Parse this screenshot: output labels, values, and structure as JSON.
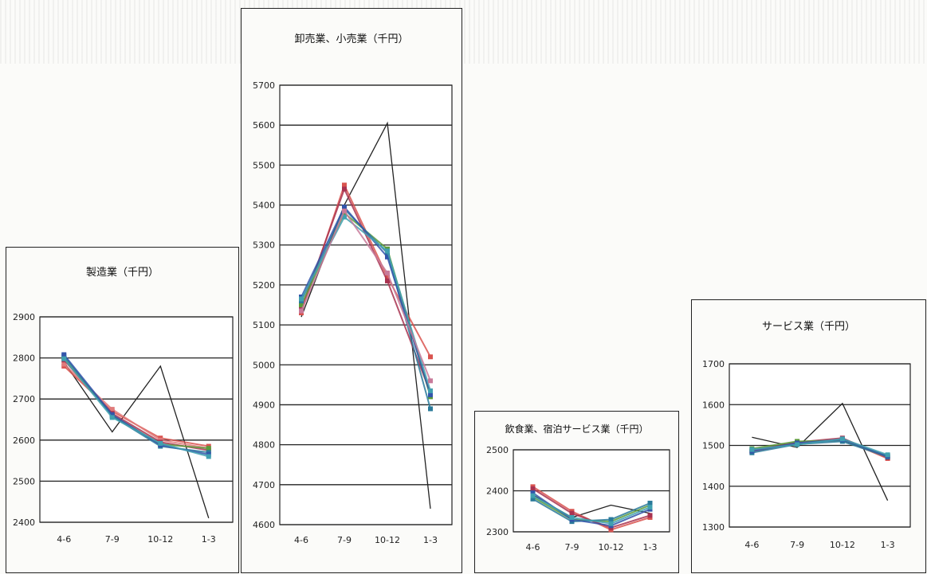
{
  "chart_data": [
    {
      "type": "line",
      "title": "製造業（千円）",
      "categories": [
        "4-6",
        "7-9",
        "10-12",
        "1-3"
      ],
      "ylim": [
        2400,
        2900
      ],
      "yticks": [
        2400,
        2500,
        2600,
        2700,
        2800,
        2900
      ],
      "series": [
        {
          "color": "#222222",
          "values": [
            2790,
            2620,
            2780,
            2410
          ]
        },
        {
          "color": "#d9534f",
          "values": [
            2780,
            2670,
            2605,
            2585
          ]
        },
        {
          "color": "#e07b7b",
          "values": [
            2785,
            2675,
            2600,
            2580
          ]
        },
        {
          "color": "#a83250",
          "values": [
            2795,
            2665,
            2595,
            2575
          ]
        },
        {
          "color": "#5b9b3a",
          "values": [
            2800,
            2660,
            2590,
            2580
          ]
        },
        {
          "color": "#2a7a9a",
          "values": [
            2805,
            2658,
            2585,
            2570
          ]
        },
        {
          "color": "#3355aa",
          "values": [
            2808,
            2662,
            2588,
            2565
          ]
        },
        {
          "color": "#40a0b0",
          "values": [
            2798,
            2655,
            2592,
            2560
          ]
        }
      ]
    },
    {
      "type": "line",
      "title": "卸売業、小売業（千円）",
      "categories": [
        "4-6",
        "7-9",
        "10-12",
        "1-3"
      ],
      "ylim": [
        4600,
        5700
      ],
      "yticks": [
        4600,
        4700,
        4800,
        4900,
        5000,
        5100,
        5200,
        5300,
        5400,
        5500,
        5600,
        5700
      ],
      "series": [
        {
          "color": "#222222",
          "values": [
            5120,
            5400,
            5605,
            4640
          ]
        },
        {
          "color": "#d9534f",
          "values": [
            5130,
            5450,
            5220,
            5020
          ]
        },
        {
          "color": "#a83250",
          "values": [
            5140,
            5440,
            5210,
            4930
          ]
        },
        {
          "color": "#5b9b3a",
          "values": [
            5150,
            5380,
            5290,
            4920
          ]
        },
        {
          "color": "#2a7a9a",
          "values": [
            5160,
            5390,
            5280,
            4890
          ]
        },
        {
          "color": "#3355aa",
          "values": [
            5170,
            5395,
            5270,
            4925
          ]
        },
        {
          "color": "#40a0b0",
          "values": [
            5165,
            5370,
            5285,
            4935
          ]
        },
        {
          "color": "#c87a9a",
          "values": [
            5135,
            5385,
            5230,
            4960
          ]
        }
      ]
    },
    {
      "type": "line",
      "title": "飲食業、宿泊サービス業（千円）",
      "categories": [
        "4-6",
        "7-9",
        "10-12",
        "1-3"
      ],
      "ylim": [
        2300,
        2500
      ],
      "yticks": [
        2300,
        2400,
        2500
      ],
      "series": [
        {
          "color": "#222222",
          "values": [
            2390,
            2335,
            2365,
            2345
          ]
        },
        {
          "color": "#d9534f",
          "values": [
            2410,
            2350,
            2305,
            2335
          ]
        },
        {
          "color": "#a83250",
          "values": [
            2405,
            2345,
            2310,
            2340
          ]
        },
        {
          "color": "#5b9b3a",
          "values": [
            2385,
            2330,
            2325,
            2365
          ]
        },
        {
          "color": "#2a7a9a",
          "values": [
            2380,
            2325,
            2330,
            2370
          ]
        },
        {
          "color": "#3355aa",
          "values": [
            2395,
            2330,
            2315,
            2355
          ]
        },
        {
          "color": "#40a0b0",
          "values": [
            2388,
            2335,
            2320,
            2360
          ]
        }
      ]
    },
    {
      "type": "line",
      "title": "サービス業（千円）",
      "categories": [
        "4-6",
        "7-9",
        "10-12",
        "1-3"
      ],
      "ylim": [
        1300,
        1700
      ],
      "yticks": [
        1300,
        1400,
        1500,
        1600,
        1700
      ],
      "series": [
        {
          "color": "#222222",
          "values": [
            1520,
            1495,
            1603,
            1365
          ]
        },
        {
          "color": "#d9534f",
          "values": [
            1485,
            1505,
            1515,
            1468
          ]
        },
        {
          "color": "#a83250",
          "values": [
            1488,
            1508,
            1518,
            1470
          ]
        },
        {
          "color": "#5b9b3a",
          "values": [
            1492,
            1510,
            1512,
            1475
          ]
        },
        {
          "color": "#2a7a9a",
          "values": [
            1482,
            1503,
            1510,
            1472
          ]
        },
        {
          "color": "#3355aa",
          "values": [
            1486,
            1506,
            1514,
            1474
          ]
        },
        {
          "color": "#40a0b0",
          "values": [
            1490,
            1502,
            1516,
            1477
          ]
        }
      ]
    }
  ]
}
